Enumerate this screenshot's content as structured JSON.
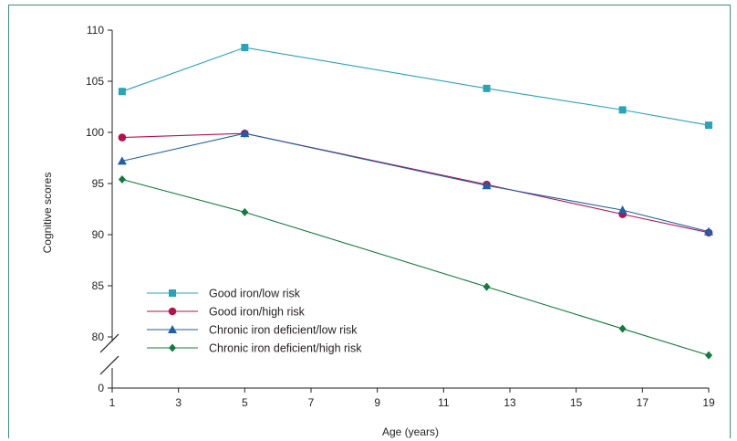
{
  "chart_data": {
    "type": "line",
    "xlabel": "Age (years)",
    "ylabel": "Cognitive scores",
    "xlim": [
      1,
      19
    ],
    "x_ticks": [
      1,
      3,
      5,
      7,
      9,
      11,
      13,
      15,
      17,
      19
    ],
    "y_ticks": [
      0,
      80,
      85,
      90,
      95,
      100,
      105,
      110
    ],
    "y_axis_break": "between 0 and 80",
    "ylim": [
      77,
      110
    ],
    "grid": false,
    "legend_position": "bottom-left",
    "series": [
      {
        "name": "Good iron/low risk",
        "marker": "square",
        "color": "#29a3b8",
        "x": [
          1.3,
          5,
          12.3,
          16.4,
          19
        ],
        "values": [
          104.0,
          108.3,
          104.3,
          102.2,
          100.7
        ]
      },
      {
        "name": "Good iron/high risk",
        "marker": "circle",
        "color": "#b3134d",
        "x": [
          1.3,
          5,
          12.3,
          16.4,
          19
        ],
        "values": [
          99.5,
          99.9,
          94.9,
          92.0,
          90.2
        ]
      },
      {
        "name": "Chronic iron deficient/low risk",
        "marker": "triangle",
        "color": "#1f5fa6",
        "x": [
          1.3,
          5,
          12.3,
          16.4,
          19
        ],
        "values": [
          97.2,
          99.9,
          94.8,
          92.4,
          90.3
        ]
      },
      {
        "name": "Chronic iron deficient/high risk",
        "marker": "diamond",
        "color": "#147a3d",
        "x": [
          1.3,
          5,
          12.3,
          16.4,
          19
        ],
        "values": [
          95.4,
          92.2,
          84.9,
          80.8,
          78.2
        ]
      }
    ]
  }
}
